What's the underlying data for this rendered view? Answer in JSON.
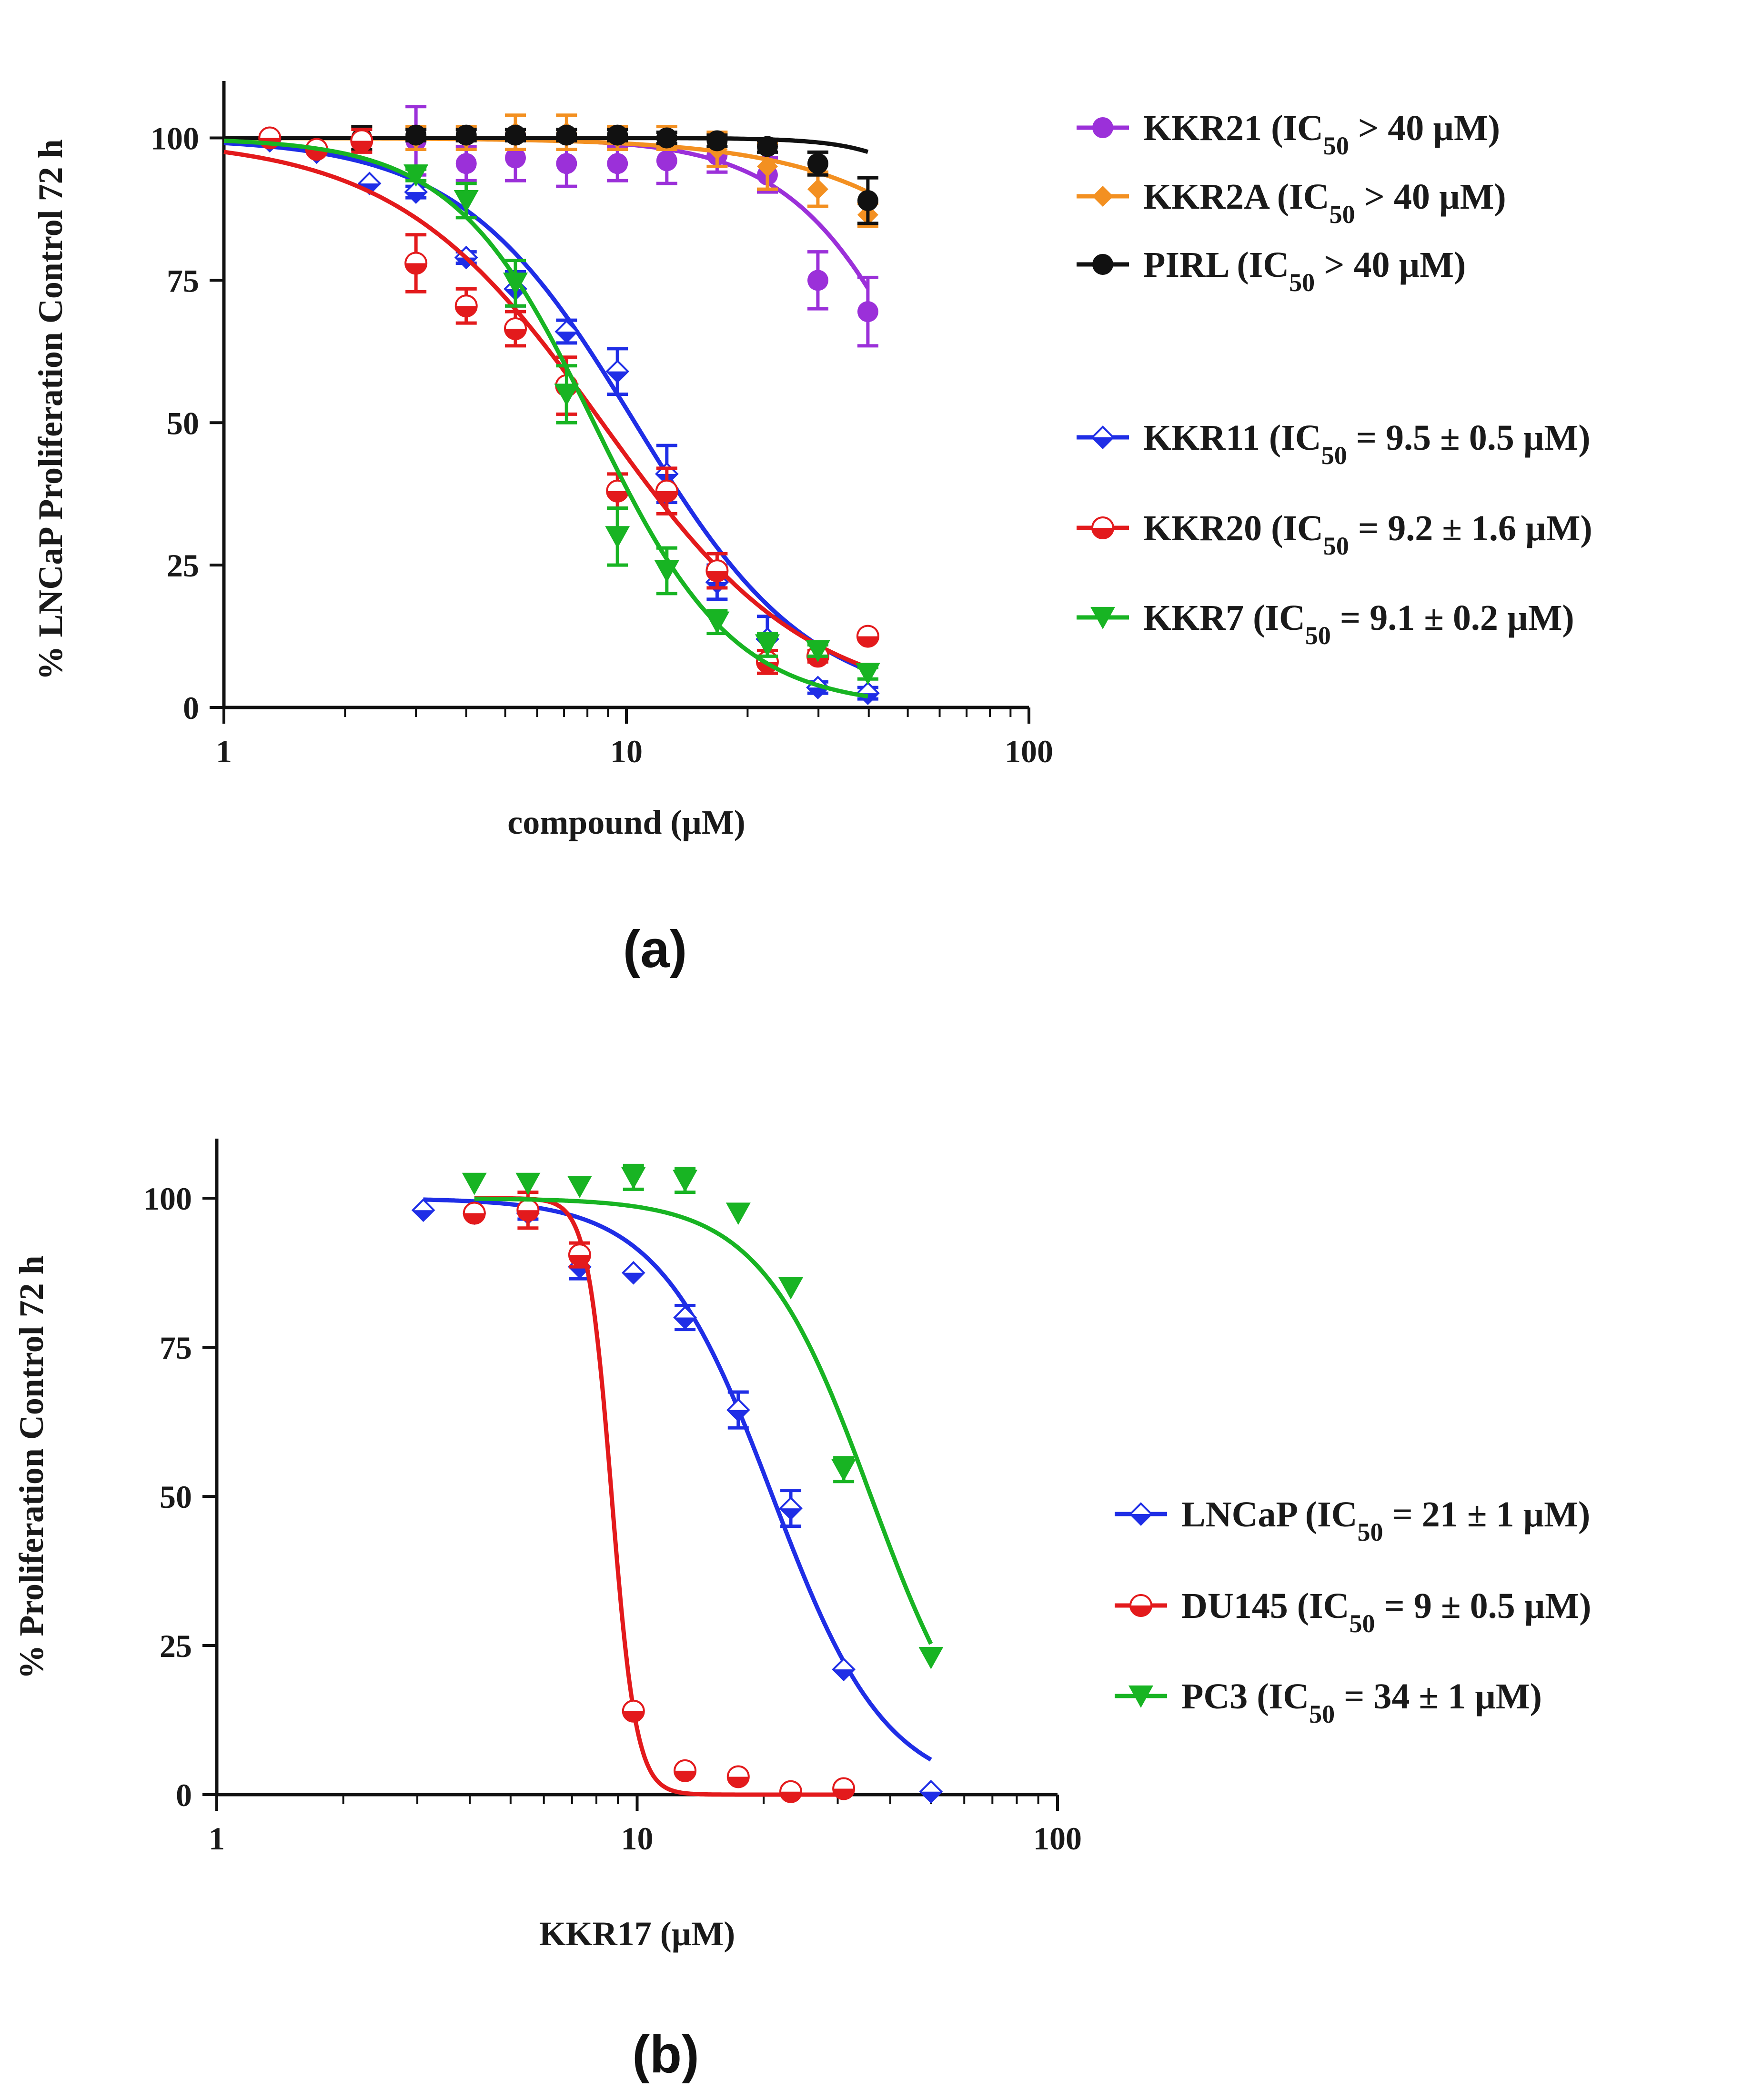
{
  "chart_data": [
    {
      "type": "scatter",
      "panel_label": "(a)",
      "xlabel": "compound (µM)",
      "ylabel": "% LNCaP Proliferation Control 72 h",
      "xscale": "log",
      "xlim": [
        1,
        100
      ],
      "ylim": [
        0,
        110
      ],
      "xticks": [
        {
          "value": 1,
          "label": "1"
        },
        {
          "value": 10,
          "label": "10"
        },
        {
          "value": 100,
          "label": "100"
        }
      ],
      "yticks": [
        {
          "value": 0,
          "label": "0"
        },
        {
          "value": 25,
          "label": "25"
        },
        {
          "value": 50,
          "label": "50"
        },
        {
          "value": 75,
          "label": "75"
        },
        {
          "value": 100,
          "label": "100"
        }
      ],
      "series": [
        {
          "name": "KKR21",
          "legend_prefix": "KKR21 (IC",
          "legend_sub": "50",
          "legend_suffix": " > 40 µM)",
          "color": "#9b30d9",
          "marker": "dot",
          "legend_group": "top",
          "x": [
            3.0,
            4.0,
            5.3,
            7.1,
            9.5,
            12.6,
            16.8,
            22.4,
            29.9,
            39.8
          ],
          "y": [
            99.5,
            95.5,
            96.5,
            95.5,
            95.5,
            96.0,
            97.0,
            93.5,
            75.0,
            69.5
          ],
          "err": [
            6,
            3,
            4,
            4,
            3,
            4,
            3,
            3,
            5,
            6
          ],
          "fit": {
            "top": 100,
            "bottom": 0,
            "ic50": 60,
            "hill": 2.5
          }
        },
        {
          "name": "KKR2A",
          "legend_prefix": "KKR2A (IC",
          "legend_sub": "50",
          "legend_suffix": " > 40 µM)",
          "color": "#f39021",
          "marker": "diamond",
          "legend_group": "top",
          "x": [
            2.2,
            3.0,
            4.0,
            5.3,
            7.1,
            9.5,
            12.6,
            16.8,
            22.4,
            29.9,
            39.8
          ],
          "y": [
            100.0,
            100.0,
            100.0,
            101.0,
            101.0,
            100.0,
            100.0,
            98.0,
            95.0,
            91.0,
            86.5
          ],
          "err": [
            2,
            2,
            2,
            3,
            3,
            2,
            2,
            3,
            4,
            3,
            2
          ],
          "fit": {
            "top": 100,
            "bottom": 0,
            "ic50": 150,
            "hill": 1.7
          }
        },
        {
          "name": "PIRL",
          "legend_prefix": "PIRL (IC",
          "legend_sub": "50",
          "legend_suffix": " > 40 µM)",
          "color": "#111111",
          "marker": "dot",
          "legend_group": "top",
          "x": [
            2.2,
            3.0,
            4.0,
            5.3,
            7.1,
            9.5,
            12.6,
            16.8,
            22.4,
            29.9,
            39.8
          ],
          "y": [
            100.0,
            100.5,
            100.5,
            100.5,
            100.5,
            100.5,
            100.0,
            99.5,
            98.5,
            95.5,
            89.0
          ],
          "err": [
            2,
            1,
            1,
            1,
            1,
            1,
            1,
            1,
            1,
            2,
            4
          ],
          "fit": {
            "top": 100,
            "bottom": 0,
            "ic50": 100,
            "hill": 4.0
          }
        },
        {
          "name": "KKR11",
          "legend_prefix": "KKR11 (IC",
          "legend_sub": "50",
          "legend_suffix": " = 9.5 ± 0.5 µM)",
          "color": "#1f2ee6",
          "marker": "half-diamond",
          "legend_group": "bottom",
          "x": [
            1.3,
            1.7,
            2.3,
            3.0,
            4.0,
            5.3,
            7.1,
            9.5,
            12.6,
            16.8,
            22.4,
            29.9,
            39.8
          ],
          "y": [
            99.5,
            97.5,
            92.0,
            90.5,
            79.0,
            73.5,
            66.0,
            59.0,
            41.0,
            22.0,
            12.0,
            3.5,
            2.5
          ],
          "err": [
            0,
            0,
            0,
            1,
            1,
            3,
            2,
            4,
            5,
            3,
            4,
            1,
            1
          ],
          "fit": {
            "top": 100,
            "bottom": 0,
            "ic50": 10.5,
            "hill": 2.0
          }
        },
        {
          "name": "KKR20",
          "legend_prefix": "KKR20 (IC",
          "legend_sub": "50",
          "legend_suffix": " = 9.2 ± 1.6 µM)",
          "color": "#e31a1c",
          "marker": "half-circle",
          "legend_group": "bottom",
          "x": [
            1.3,
            1.7,
            2.2,
            3.0,
            4.0,
            5.3,
            7.1,
            9.5,
            12.6,
            16.8,
            22.4,
            29.9,
            39.8
          ],
          "y": [
            100.0,
            98.0,
            99.5,
            78.0,
            70.5,
            66.5,
            56.5,
            38.0,
            38.0,
            24.0,
            8.0,
            9.0,
            12.5
          ],
          "err": [
            0,
            0,
            2,
            5,
            3,
            3,
            5,
            3,
            4,
            3,
            2,
            1,
            0
          ],
          "fit": {
            "top": 100,
            "bottom": 0,
            "ic50": 8.7,
            "hill": 1.7
          }
        },
        {
          "name": "KKR7",
          "legend_prefix": "KKR7 (IC",
          "legend_sub": "50",
          "legend_suffix": " = 9.1 ± 0.2 µM)",
          "color": "#18b423",
          "marker": "triangle-down",
          "legend_group": "bottom",
          "x": [
            3.0,
            4.0,
            5.3,
            7.1,
            9.5,
            12.6,
            16.8,
            22.4,
            29.9,
            39.8
          ],
          "y": [
            93.5,
            89.0,
            74.5,
            55.0,
            30.0,
            24.0,
            15.0,
            11.0,
            10.0,
            6.0
          ],
          "err": [
            1,
            3,
            4,
            5,
            5,
            4,
            2,
            2,
            1,
            1
          ],
          "fit": {
            "top": 100,
            "bottom": 0,
            "ic50": 8.3,
            "hill": 2.5
          }
        }
      ]
    },
    {
      "type": "scatter",
      "panel_label": "(b)",
      "xlabel": "KKR17 (µM)",
      "ylabel": "%  Proliferation Control 72 h",
      "xscale": "log",
      "xlim": [
        1,
        100
      ],
      "ylim": [
        0,
        110
      ],
      "xticks": [
        {
          "value": 1,
          "label": "1"
        },
        {
          "value": 10,
          "label": "10"
        },
        {
          "value": 100,
          "label": "100"
        }
      ],
      "yticks": [
        {
          "value": 0,
          "label": "0"
        },
        {
          "value": 25,
          "label": "25"
        },
        {
          "value": 50,
          "label": "50"
        },
        {
          "value": 75,
          "label": "75"
        },
        {
          "value": 100,
          "label": "100"
        }
      ],
      "series": [
        {
          "name": "LNCaP",
          "legend_prefix": "LNCaP (IC",
          "legend_sub": "50",
          "legend_suffix": " = 21 ± 1 µM)",
          "color": "#1f2ee6",
          "marker": "half-diamond",
          "legend_group": "bottom",
          "x": [
            3.1,
            4.1,
            5.5,
            7.3,
            9.8,
            13.0,
            17.4,
            23.2,
            31.0,
            50.0
          ],
          "y": [
            98.0,
            97.5,
            97.5,
            88.5,
            87.5,
            80.0,
            64.5,
            48.0,
            21.0,
            0.5
          ],
          "err": [
            0,
            0,
            1,
            2,
            0,
            2,
            3,
            3,
            0,
            0
          ],
          "fit": {
            "top": 100,
            "bottom": 0,
            "ic50": 21,
            "hill": 3.2
          }
        },
        {
          "name": "DU145",
          "legend_prefix": "DU145 (IC",
          "legend_sub": "50",
          "legend_suffix": " = 9 ± 0.5 µM)",
          "color": "#e31a1c",
          "marker": "half-circle",
          "legend_group": "bottom",
          "x": [
            4.1,
            5.5,
            7.3,
            9.8,
            13.0,
            17.4,
            23.2,
            31.0
          ],
          "y": [
            97.5,
            98.0,
            90.5,
            14.0,
            4.0,
            3.0,
            0.5,
            1.0
          ],
          "err": [
            0,
            3,
            2,
            0,
            0,
            0,
            0,
            0
          ],
          "fit": {
            "top": 100,
            "bottom": 0,
            "ic50": 8.7,
            "hill": 15
          }
        },
        {
          "name": "PC3",
          "legend_prefix": "PC3 (IC",
          "legend_sub": "50",
          "legend_suffix": " = 34 ± 1 µM)",
          "color": "#18b423",
          "marker": "triangle-down",
          "legend_group": "bottom",
          "x": [
            4.1,
            5.5,
            7.3,
            9.8,
            13.0,
            17.4,
            23.2,
            31.0,
            50.0
          ],
          "y": [
            102.5,
            102.5,
            102.0,
            103.5,
            103.0,
            97.5,
            85.0,
            54.5,
            23.0
          ],
          "err": [
            0,
            0,
            0,
            2,
            2,
            0,
            0,
            2,
            0
          ],
          "fit": {
            "top": 100,
            "bottom": 0,
            "ic50": 36,
            "hill": 3.3
          }
        }
      ]
    }
  ]
}
